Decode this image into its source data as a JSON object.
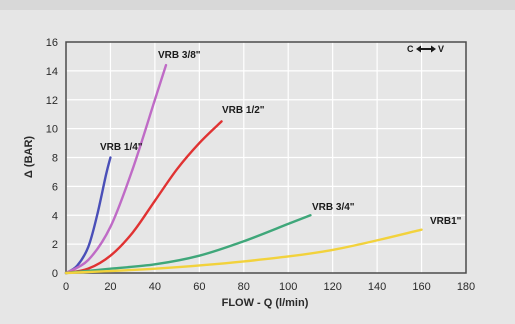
{
  "chart_data": {
    "type": "line",
    "title": "",
    "xlabel": "FLOW - Q (l/min)",
    "ylabel": "Δ (BAR)",
    "xlim": [
      0,
      180
    ],
    "ylim": [
      0,
      16
    ],
    "xticks": [
      0,
      20,
      40,
      60,
      80,
      100,
      120,
      140,
      160,
      180
    ],
    "yticks": [
      0,
      2,
      4,
      6,
      8,
      10,
      12,
      14,
      16
    ],
    "grid": true,
    "flow_indicator": {
      "left": "C",
      "right": "V"
    },
    "series": [
      {
        "name": "VRB 1/4\"",
        "color": "#4a4fb8",
        "x": [
          0,
          5,
          10,
          14,
          18,
          20
        ],
        "y": [
          0,
          0.5,
          1.8,
          4.0,
          6.8,
          8.0
        ]
      },
      {
        "name": "VRB 3/8\"",
        "color": "#bf6bc6",
        "x": [
          0,
          10,
          20,
          30,
          40,
          45
        ],
        "y": [
          0,
          0.9,
          3.2,
          7.2,
          12.0,
          14.4
        ]
      },
      {
        "name": "VRB 1/2\"",
        "color": "#e03232",
        "x": [
          0,
          10,
          20,
          30,
          40,
          50,
          60,
          70
        ],
        "y": [
          0,
          0.3,
          1.2,
          2.8,
          5.0,
          7.2,
          9.0,
          10.5
        ]
      },
      {
        "name": "VRB 3/4\"",
        "color": "#3fa77a",
        "x": [
          0,
          20,
          40,
          60,
          80,
          100,
          110
        ],
        "y": [
          0,
          0.3,
          0.6,
          1.2,
          2.2,
          3.4,
          4.0
        ]
      },
      {
        "name": "VRB1\"",
        "color": "#f2d23c",
        "x": [
          0,
          40,
          80,
          120,
          160
        ],
        "y": [
          0,
          0.3,
          0.8,
          1.6,
          3.0
        ]
      }
    ]
  }
}
